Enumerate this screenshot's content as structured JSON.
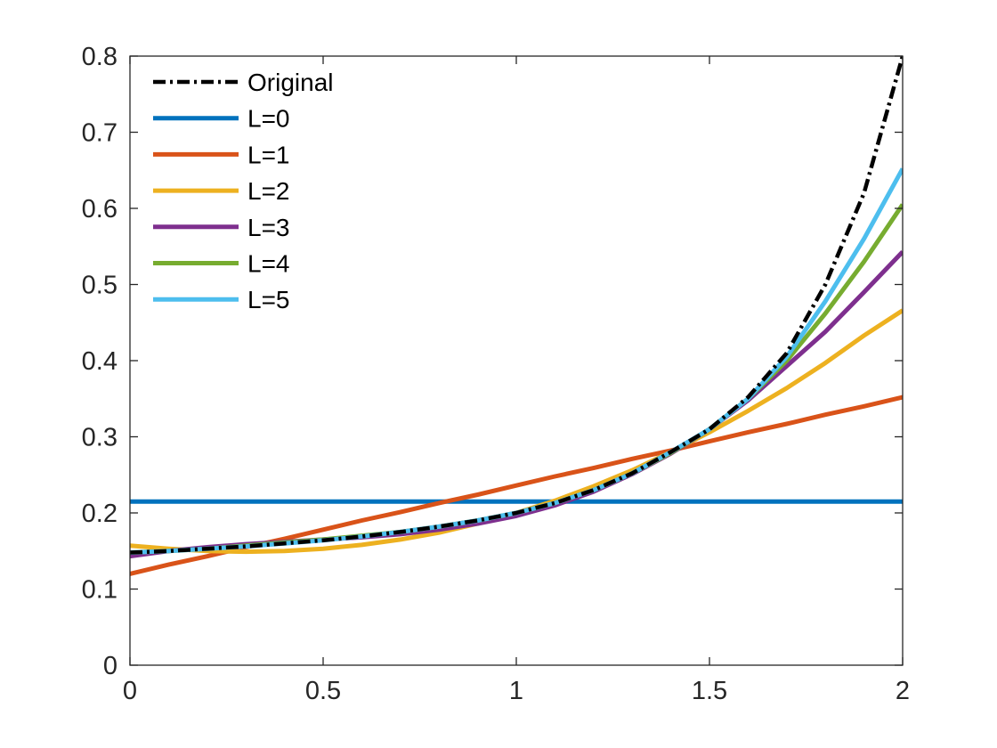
{
  "chart_data": {
    "type": "line",
    "title": "",
    "xlabel": "",
    "ylabel": "",
    "xlim": [
      0,
      2
    ],
    "ylim": [
      0,
      0.8
    ],
    "xticks": [
      "0",
      "0.5",
      "1",
      "1.5",
      "2"
    ],
    "yticks": [
      "0",
      "0.1",
      "0.2",
      "0.3",
      "0.4",
      "0.5",
      "0.6",
      "0.7",
      "0.8"
    ],
    "grid": false,
    "legend_position": "top-left",
    "x": [
      0,
      0.1,
      0.2,
      0.3,
      0.4,
      0.5,
      0.6,
      0.7,
      0.8,
      0.9,
      1.0,
      1.1,
      1.2,
      1.3,
      1.4,
      1.5,
      1.6,
      1.7,
      1.8,
      1.9,
      2.0
    ],
    "series": [
      {
        "name": "Original",
        "color": "#000000",
        "style": "dashdot",
        "values": [
          0.148,
          0.15,
          0.153,
          0.156,
          0.16,
          0.164,
          0.169,
          0.175,
          0.182,
          0.19,
          0.2,
          0.213,
          0.23,
          0.252,
          0.28,
          0.31,
          0.352,
          0.41,
          0.5,
          0.62,
          0.8
        ]
      },
      {
        "name": "L=0",
        "color": "#0072BD",
        "style": "solid",
        "values": [
          0.215,
          0.215,
          0.215,
          0.215,
          0.215,
          0.215,
          0.215,
          0.215,
          0.215,
          0.215,
          0.215,
          0.215,
          0.215,
          0.215,
          0.215,
          0.215,
          0.215,
          0.215,
          0.215,
          0.215,
          0.215
        ]
      },
      {
        "name": "L=1",
        "color": "#D95319",
        "style": "solid",
        "values": [
          0.12,
          0.132,
          0.143,
          0.155,
          0.166,
          0.178,
          0.19,
          0.201,
          0.213,
          0.224,
          0.236,
          0.248,
          0.259,
          0.271,
          0.282,
          0.294,
          0.306,
          0.317,
          0.329,
          0.34,
          0.352
        ]
      },
      {
        "name": "L=2",
        "color": "#EDB120",
        "style": "solid",
        "values": [
          0.157,
          0.153,
          0.15,
          0.149,
          0.15,
          0.153,
          0.158,
          0.165,
          0.174,
          0.186,
          0.2,
          0.216,
          0.235,
          0.256,
          0.28,
          0.306,
          0.334,
          0.364,
          0.397,
          0.433,
          0.466
        ]
      },
      {
        "name": "L=3",
        "color": "#7E2F8E",
        "style": "solid",
        "values": [
          0.143,
          0.15,
          0.155,
          0.159,
          0.162,
          0.165,
          0.168,
          0.172,
          0.178,
          0.186,
          0.196,
          0.21,
          0.228,
          0.251,
          0.278,
          0.31,
          0.348,
          0.393,
          0.438,
          0.49,
          0.543
        ]
      },
      {
        "name": "L=4",
        "color": "#77AC30",
        "style": "solid",
        "values": [
          0.148,
          0.15,
          0.153,
          0.157,
          0.161,
          0.165,
          0.17,
          0.175,
          0.182,
          0.19,
          0.2,
          0.213,
          0.23,
          0.252,
          0.279,
          0.31,
          0.35,
          0.4,
          0.462,
          0.53,
          0.605
        ]
      },
      {
        "name": "L=5",
        "color": "#4DBEEE",
        "style": "solid",
        "values": [
          0.148,
          0.15,
          0.153,
          0.156,
          0.16,
          0.164,
          0.169,
          0.175,
          0.182,
          0.19,
          0.2,
          0.213,
          0.23,
          0.252,
          0.28,
          0.31,
          0.35,
          0.405,
          0.478,
          0.56,
          0.652
        ]
      }
    ]
  }
}
